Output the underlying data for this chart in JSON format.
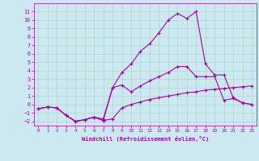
{
  "xlabel": "Windchill (Refroidissement éolien,°C)",
  "background_color": "#cce8f0",
  "grid_color": "#b0d8c8",
  "line_color": "#aa00aa",
  "x": [
    0,
    1,
    2,
    3,
    4,
    5,
    6,
    7,
    8,
    9,
    10,
    11,
    12,
    13,
    14,
    15,
    16,
    17,
    18,
    19,
    20,
    21,
    22,
    23
  ],
  "line1": [
    -0.5,
    -0.3,
    -0.4,
    -1.3,
    -2.0,
    -1.8,
    -1.5,
    -1.9,
    -1.7,
    -0.4,
    0.0,
    0.3,
    0.6,
    0.8,
    1.0,
    1.2,
    1.4,
    1.5,
    1.7,
    1.8,
    1.9,
    2.0,
    2.1,
    2.2
  ],
  "line2": [
    -0.5,
    -0.3,
    -0.4,
    -1.3,
    -2.0,
    -1.8,
    -1.5,
    -1.9,
    2.0,
    2.3,
    1.5,
    2.2,
    2.8,
    3.3,
    3.8,
    4.5,
    4.5,
    3.3,
    3.3,
    3.3,
    0.5,
    0.7,
    0.2,
    0.0
  ],
  "line3": [
    -0.5,
    -0.3,
    -0.4,
    -1.3,
    -2.0,
    -1.8,
    -1.5,
    -1.7,
    2.0,
    3.8,
    4.8,
    6.3,
    7.2,
    8.5,
    10.0,
    10.8,
    10.2,
    11.0,
    4.8,
    3.5,
    3.5,
    0.8,
    0.2,
    0.0
  ],
  "ylim": [
    -2.5,
    12.0
  ],
  "xlim": [
    -0.5,
    23.5
  ],
  "yticks": [
    -2,
    -1,
    0,
    1,
    2,
    3,
    4,
    5,
    6,
    7,
    8,
    9,
    10,
    11
  ],
  "xticks": [
    0,
    1,
    2,
    3,
    4,
    5,
    6,
    7,
    8,
    9,
    10,
    11,
    12,
    13,
    14,
    15,
    16,
    17,
    18,
    19,
    20,
    21,
    22,
    23
  ]
}
